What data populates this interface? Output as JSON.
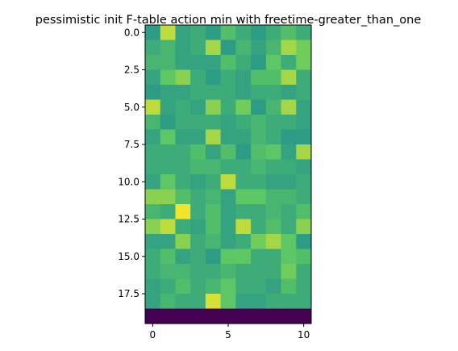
{
  "chart_data": {
    "type": "heatmap",
    "title": "pessimistic init F-table action min with freetime-greater_than_one",
    "xlabel": "",
    "ylabel": "",
    "colormap": "viridis",
    "color_range": [
      0,
      1
    ],
    "xlim": [
      -0.5,
      10.5
    ],
    "ylim": [
      19.5,
      -0.5
    ],
    "x_ticks": [
      0,
      5,
      10
    ],
    "x_tick_labels": [
      "0",
      "5",
      "10"
    ],
    "y_ticks": [
      0.0,
      2.5,
      5.0,
      7.5,
      10.0,
      12.5,
      15.0,
      17.5
    ],
    "y_tick_labels": [
      "0.0",
      "2.5",
      "5.0",
      "7.5",
      "10.0",
      "12.5",
      "15.0",
      "17.5"
    ],
    "rows": 20,
    "cols": 11,
    "values": [
      [
        0.55,
        0.9,
        0.58,
        0.62,
        0.55,
        0.7,
        0.62,
        0.55,
        0.62,
        0.7,
        0.62
      ],
      [
        0.62,
        0.66,
        0.58,
        0.62,
        0.86,
        0.55,
        0.66,
        0.58,
        0.66,
        0.86,
        0.78
      ],
      [
        0.66,
        0.66,
        0.58,
        0.58,
        0.58,
        0.7,
        0.62,
        0.55,
        0.74,
        0.62,
        0.78
      ],
      [
        0.58,
        0.74,
        0.82,
        0.62,
        0.55,
        0.62,
        0.58,
        0.7,
        0.7,
        0.86,
        0.62
      ],
      [
        0.55,
        0.58,
        0.58,
        0.62,
        0.62,
        0.62,
        0.58,
        0.62,
        0.62,
        0.58,
        0.62
      ],
      [
        0.9,
        0.58,
        0.62,
        0.58,
        0.82,
        0.62,
        0.78,
        0.55,
        0.66,
        0.86,
        0.58
      ],
      [
        0.66,
        0.55,
        0.62,
        0.62,
        0.62,
        0.58,
        0.62,
        0.66,
        0.62,
        0.62,
        0.58
      ],
      [
        0.58,
        0.74,
        0.58,
        0.58,
        0.86,
        0.58,
        0.58,
        0.66,
        0.62,
        0.55,
        0.55
      ],
      [
        0.62,
        0.62,
        0.62,
        0.7,
        0.58,
        0.7,
        0.55,
        0.7,
        0.74,
        0.58,
        0.86
      ],
      [
        0.62,
        0.62,
        0.62,
        0.66,
        0.66,
        0.62,
        0.62,
        0.66,
        0.62,
        0.62,
        0.58
      ],
      [
        0.58,
        0.74,
        0.62,
        0.58,
        0.62,
        0.9,
        0.62,
        0.62,
        0.58,
        0.58,
        0.62
      ],
      [
        0.82,
        0.82,
        0.7,
        0.62,
        0.66,
        0.58,
        0.74,
        0.74,
        0.66,
        0.66,
        0.62
      ],
      [
        0.66,
        0.62,
        0.98,
        0.62,
        0.7,
        0.58,
        0.62,
        0.62,
        0.66,
        0.62,
        0.7
      ],
      [
        0.82,
        0.9,
        0.62,
        0.58,
        0.7,
        0.58,
        0.9,
        0.62,
        0.7,
        0.62,
        0.82
      ],
      [
        0.58,
        0.58,
        0.82,
        0.62,
        0.66,
        0.58,
        0.62,
        0.78,
        0.86,
        0.74,
        0.55
      ],
      [
        0.62,
        0.7,
        0.58,
        0.62,
        0.55,
        0.74,
        0.74,
        0.62,
        0.62,
        0.74,
        0.7
      ],
      [
        0.62,
        0.66,
        0.66,
        0.62,
        0.62,
        0.66,
        0.62,
        0.62,
        0.62,
        0.78,
        0.62
      ],
      [
        0.58,
        0.62,
        0.7,
        0.62,
        0.66,
        0.74,
        0.62,
        0.62,
        0.58,
        0.7,
        0.62
      ],
      [
        0.58,
        0.66,
        0.62,
        0.62,
        0.94,
        0.74,
        0.58,
        0.58,
        0.62,
        0.62,
        0.62
      ],
      [
        0.0,
        0.0,
        0.0,
        0.0,
        0.0,
        0.0,
        0.0,
        0.0,
        0.0,
        0.0,
        0.0
      ]
    ]
  }
}
